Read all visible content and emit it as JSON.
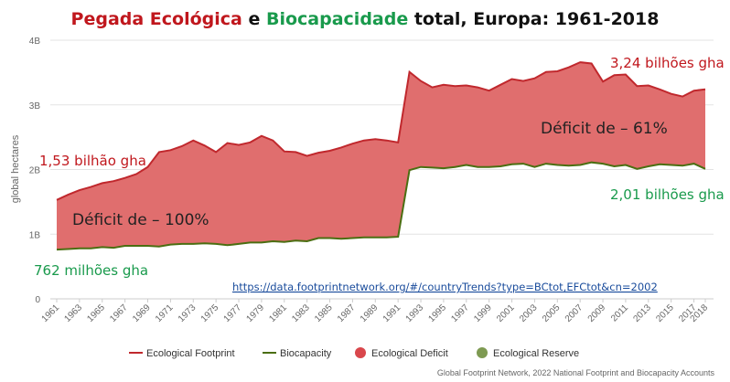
{
  "title": {
    "part1": "Pegada Ecológica",
    "part2": " e ",
    "part3": "Biocapacidade",
    "part4": " total, Europa: 1961-2018"
  },
  "colors": {
    "footprint": "#c0282d",
    "deficit_fill": "#e06e6e",
    "biocapacity": "#4b6e12",
    "reserve": "#7e9a52",
    "red_text": "#c0171d",
    "green_text": "#199a4c",
    "grid": "#e3e3e3"
  },
  "chart_data": {
    "type": "area",
    "ylabel": "global hectares",
    "y_ticks": [
      "0",
      "1B",
      "2B",
      "3B",
      "4B"
    ],
    "ylim": [
      0,
      4
    ],
    "y_unit": "billion global hectares",
    "x_ticks": [
      "1961",
      "1963",
      "1965",
      "1967",
      "1969",
      "1971",
      "1973",
      "1975",
      "1977",
      "1979",
      "1981",
      "1983",
      "1985",
      "1987",
      "1989",
      "1991",
      "1993",
      "1995",
      "1997",
      "1999",
      "2001",
      "2003",
      "2005",
      "2007",
      "2009",
      "2011",
      "2013",
      "2015",
      "2017",
      "2018"
    ],
    "x": [
      1961,
      1962,
      1963,
      1964,
      1965,
      1966,
      1967,
      1968,
      1969,
      1970,
      1971,
      1972,
      1973,
      1974,
      1975,
      1976,
      1977,
      1978,
      1979,
      1980,
      1981,
      1982,
      1983,
      1984,
      1985,
      1986,
      1987,
      1988,
      1989,
      1990,
      1991,
      1992,
      1993,
      1994,
      1995,
      1996,
      1997,
      1998,
      1999,
      2000,
      2001,
      2002,
      2003,
      2004,
      2005,
      2006,
      2007,
      2008,
      2009,
      2010,
      2011,
      2012,
      2013,
      2014,
      2015,
      2016,
      2017,
      2018
    ],
    "series": [
      {
        "name": "Ecological Footprint",
        "values": [
          1.53,
          1.61,
          1.68,
          1.73,
          1.79,
          1.82,
          1.87,
          1.93,
          2.04,
          2.27,
          2.3,
          2.36,
          2.45,
          2.37,
          2.27,
          2.41,
          2.38,
          2.42,
          2.52,
          2.45,
          2.28,
          2.27,
          2.21,
          2.26,
          2.29,
          2.34,
          2.4,
          2.45,
          2.47,
          2.45,
          2.42,
          3.51,
          3.37,
          3.27,
          3.31,
          3.29,
          3.3,
          3.27,
          3.22,
          3.31,
          3.4,
          3.37,
          3.41,
          3.51,
          3.52,
          3.58,
          3.66,
          3.64,
          3.36,
          3.46,
          3.47,
          3.29,
          3.3,
          3.24,
          3.17,
          3.13,
          3.22,
          3.24
        ]
      },
      {
        "name": "Biocapacity",
        "values": [
          0.762,
          0.77,
          0.78,
          0.78,
          0.8,
          0.79,
          0.82,
          0.82,
          0.82,
          0.81,
          0.84,
          0.85,
          0.85,
          0.86,
          0.85,
          0.83,
          0.85,
          0.87,
          0.87,
          0.89,
          0.88,
          0.9,
          0.89,
          0.94,
          0.94,
          0.93,
          0.94,
          0.95,
          0.95,
          0.95,
          0.96,
          1.99,
          2.04,
          2.03,
          2.02,
          2.04,
          2.07,
          2.04,
          2.04,
          2.05,
          2.08,
          2.09,
          2.04,
          2.09,
          2.07,
          2.06,
          2.07,
          2.11,
          2.09,
          2.05,
          2.07,
          2.01,
          2.05,
          2.08,
          2.07,
          2.06,
          2.09,
          2.01
        ]
      }
    ],
    "legend": {
      "position": "bottom",
      "items": [
        "Ecological Footprint",
        "Biocapacity",
        "Ecological Deficit",
        "Ecological Reserve"
      ]
    },
    "grid": true
  },
  "annotations": {
    "footprint_start": "1,53 bilhão gha",
    "footprint_end": "3,24 bilhões gha",
    "biocap_start": "762 milhões gha",
    "biocap_end": "2,01 bilhões gha",
    "deficit_left": "Déficit de – 100%",
    "deficit_right": "Déficit de – 61%"
  },
  "link": "https://data.footprintnetwork.org/#/countryTrends?type=BCtot,EFCtot&cn=2002",
  "source": "Global Footprint Network, 2022 National Footprint and Biocapacity Accounts"
}
